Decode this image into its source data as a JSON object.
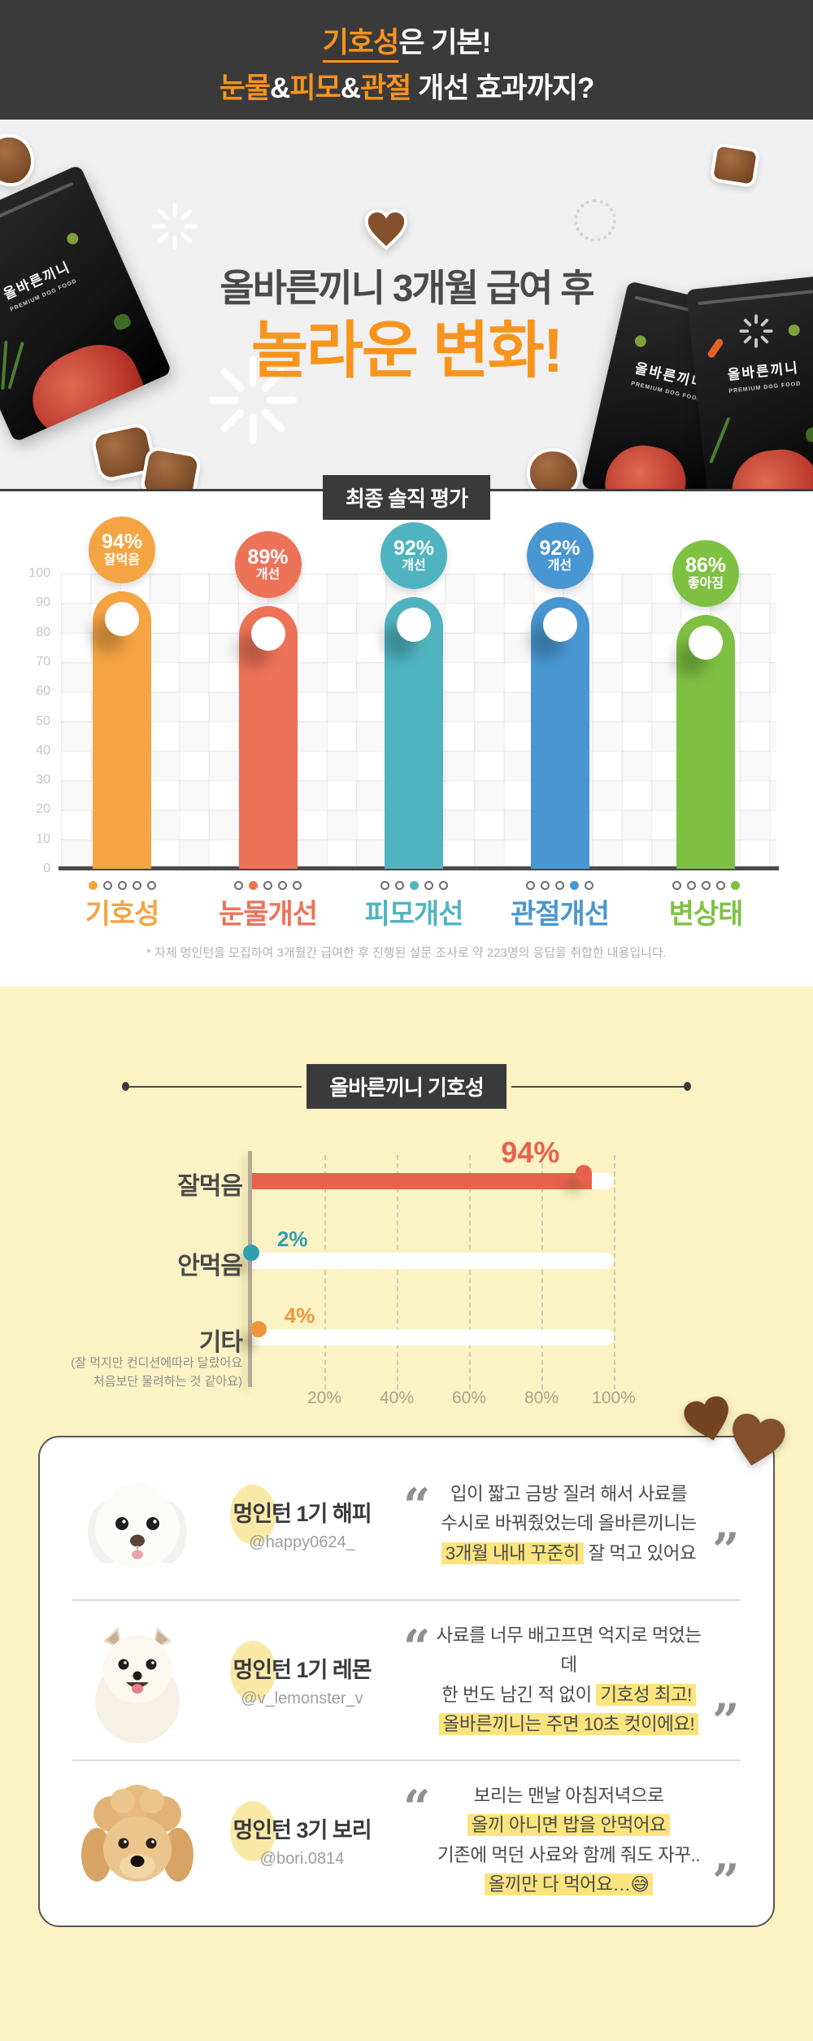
{
  "header": {
    "l1_accent": "기호성",
    "l1_rest": "은 기본!",
    "l2_a": "눈물",
    "l2_amp1": "&",
    "l2_b": "피모",
    "l2_amp2": "&",
    "l2_c": "관절",
    "l2_rest": " 개선 효과까지?"
  },
  "hero": {
    "title": "올바른끼니 3개월 급여 후",
    "emphasis": "놀라운 변화!",
    "pack_logo": "올바른끼니",
    "pack_sub": "PREMIUM DOG FOOD",
    "badge": "최종 솔직 평가"
  },
  "section2": {
    "badge": "올바른끼니 기호성"
  },
  "chart_data": [
    {
      "type": "bar",
      "title": "최종 솔직 평가",
      "categories": [
        "기호성",
        "눈물개선",
        "피모개선",
        "관절개선",
        "변상태"
      ],
      "values": [
        94,
        89,
        92,
        92,
        86
      ],
      "bubble_value_labels": [
        "94%",
        "89%",
        "92%",
        "92%",
        "86%"
      ],
      "bubble_sub_labels": [
        "잘먹음",
        "개선",
        "개선",
        "개선",
        "좋아짐"
      ],
      "colors": [
        "#f4a443",
        "#ec7258",
        "#4fb4bf",
        "#4896d2",
        "#7ec142"
      ],
      "ylim": [
        0,
        100
      ],
      "yticks": [
        100,
        90,
        80,
        70,
        60,
        50,
        40,
        30,
        20,
        10,
        0
      ],
      "grid": true,
      "legend": "none",
      "footnote": "* 자체 멍인턴을 모집하여 3개월간 급여한 후 진행된 설문 조사로 약 223명의 응답을 취합한 내용입니다."
    },
    {
      "type": "bar-horizontal",
      "title": "올바른끼니 기호성",
      "categories": [
        "잘먹음",
        "안먹음",
        "기타"
      ],
      "values": [
        94,
        2,
        4
      ],
      "value_labels": [
        "94%",
        "2%",
        "4%"
      ],
      "colors": [
        "#e9614c",
        "#2e9fb1",
        "#f0953c"
      ],
      "category_note": {
        "index": 2,
        "lines": [
          "(잘 먹지만 컨디션에따라 달랐어요",
          "처음보단 물려하는 것 같아요)"
        ]
      },
      "xticks": [
        "20%",
        "40%",
        "60%",
        "80%",
        "100%"
      ],
      "xlim": [
        0,
        100
      ],
      "grid": "dashed-vertical"
    }
  ],
  "testimonials": {
    "items": [
      {
        "name": "멍인턴 1기 해피",
        "handle": "@happy0624_",
        "dog": "maltese",
        "quote": [
          [
            {
              "t": "입이 짧고 금방 질려 해서 사료를"
            }
          ],
          [
            {
              "t": "수시로 바꿔줬었는데 올바른끼니는"
            }
          ],
          [
            {
              "t": "3개월 내내 꾸준히",
              "hl": true
            },
            {
              "t": " 잘 먹고 있어요"
            }
          ]
        ]
      },
      {
        "name": "멍인턴 1기 레몬",
        "handle": "@v_lemonster_v",
        "dog": "pomeranian",
        "quote": [
          [
            {
              "t": "사료를 너무 배고프면 억지로 먹었는데"
            }
          ],
          [
            {
              "t": "한 번도 남긴 적 없이 "
            },
            {
              "t": "기호성 최고!",
              "hl": true
            }
          ],
          [
            {
              "t": "올바른끼니는 주면 10초 컷이에요!",
              "hl": true
            }
          ]
        ]
      },
      {
        "name": "멍인턴 3기 보리",
        "handle": "@bori.0814",
        "dog": "poodle",
        "quote": [
          [
            {
              "t": "보리는 맨날 아침저녁으로"
            }
          ],
          [
            {
              "t": "올끼 아니면 밥을 안먹어요",
              "hl": true
            }
          ],
          [
            {
              "t": "기존에 먹던 사료와 함께 줘도 자꾸.."
            }
          ],
          [
            {
              "t": "올끼만 다 먹어요…😅",
              "hl": true
            }
          ]
        ]
      }
    ]
  },
  "colors": {
    "accent_orange": "#f7941d",
    "dark": "#3a3a3a",
    "yellow_bg": "#fcf3c4",
    "highlight": "#fbe47e"
  }
}
